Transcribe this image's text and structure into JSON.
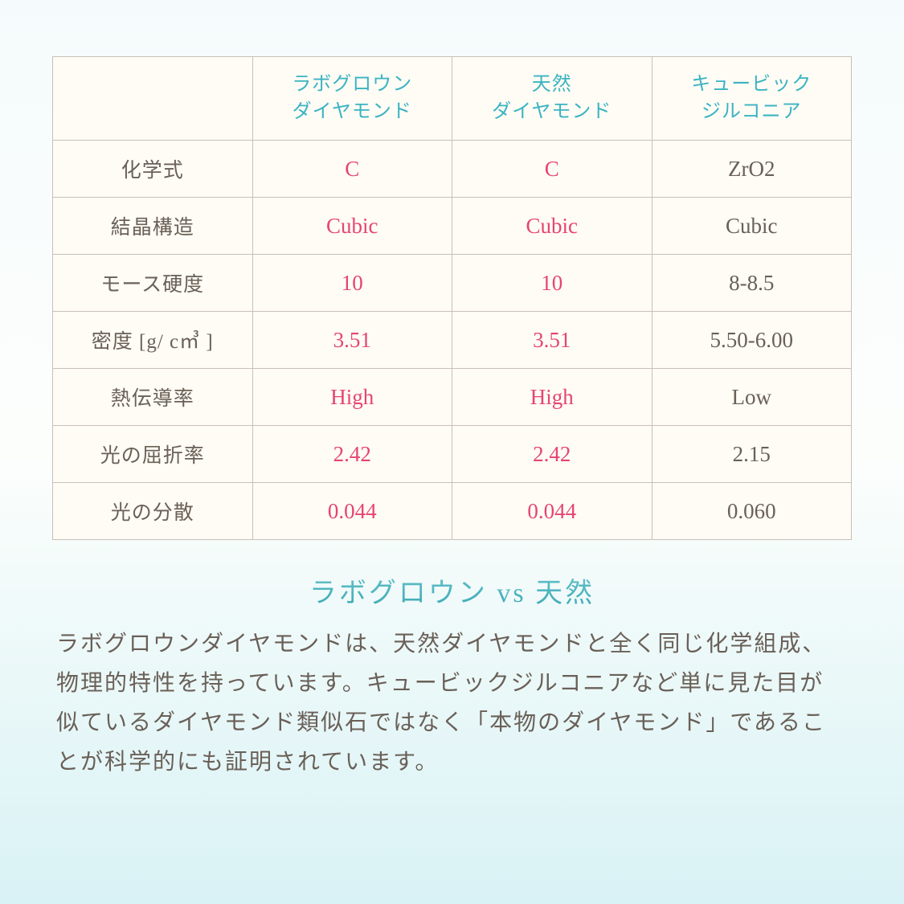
{
  "table": {
    "type": "table",
    "background_color": "#fefcf4",
    "border_color": "#c9c0b9",
    "header_color": "#3bb3c3",
    "label_color": "#6a6058",
    "highlight_color": "#e6456f",
    "normal_color": "#6a6058",
    "header_fontsize": 24,
    "cell_fontsize": 27,
    "label_fontsize": 25,
    "columns": [
      "",
      "ラボグロウン\nダイヤモンド",
      "天然\nダイヤモンド",
      "キュービック\nジルコニア"
    ],
    "rows": [
      {
        "label": "化学式",
        "c1": "C",
        "c2": "C",
        "c3": "ZrO2"
      },
      {
        "label": "結晶構造",
        "c1": "Cubic",
        "c2": "Cubic",
        "c3": "Cubic"
      },
      {
        "label": "モース硬度",
        "c1": "10",
        "c2": "10",
        "c3": "8-8.5"
      },
      {
        "label": "密度 [g/ c㎥ ]",
        "c1": "3.51",
        "c2": "3.51",
        "c3": "5.50-6.00"
      },
      {
        "label": "熱伝導率",
        "c1": "High",
        "c2": "High",
        "c3": "Low"
      },
      {
        "label": "光の屈折率",
        "c1": "2.42",
        "c2": "2.42",
        "c3": "2.15"
      },
      {
        "label": "光の分散",
        "c1": "0.044",
        "c2": "0.044",
        "c3": "0.060"
      }
    ]
  },
  "subtitle": "ラボグロウン vs 天然",
  "description": "ラボグロウンダイヤモンドは、天然ダイヤモンドと全く同じ化学組成、物理的特性を持っています。キュービックジルコニアなど単に見た目が似ているダイヤモンド類似石ではなく「本物のダイヤモンド」であることが科学的にも証明されています。",
  "page_bg_gradient": [
    "#f5fbfc",
    "#fcfefc",
    "#d9f2f5"
  ],
  "subtitle_color": "#3ba8b5",
  "subtitle_fontsize": 34,
  "description_color": "#6a6058",
  "description_fontsize": 28
}
